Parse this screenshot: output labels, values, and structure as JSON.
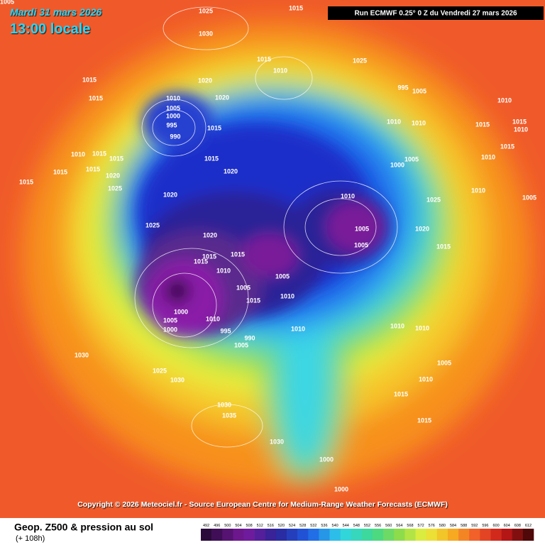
{
  "header": {
    "date": "Mardi 31 mars 2026",
    "time": "13:00 locale",
    "run": "Run ECMWF 0.25° 0 Z du Vendredi 27 mars 2026"
  },
  "copyright": "Copyright © 2026 Meteociel.fr - Source European Centre for Medium-Range Weather Forecasts (ECMWF)",
  "legend": {
    "title": "Geop. Z500 & pression au sol",
    "subtitle": "(+ 108h)",
    "scale": [
      492,
      496,
      500,
      504,
      508,
      512,
      516,
      520,
      524,
      528,
      532,
      536,
      540,
      544,
      548,
      552,
      556,
      560,
      564,
      568,
      572,
      576,
      580,
      584,
      588,
      592,
      596,
      600,
      604,
      608,
      612
    ]
  },
  "isobar_labels": [
    "1005",
    "1025",
    "1015",
    "1030",
    "1015",
    "1010",
    "1025",
    "1015",
    "1020",
    "1015",
    "1010",
    "1020",
    "995",
    "1005",
    "1010",
    "1005",
    "1000",
    "995",
    "990",
    "1015",
    "1010",
    "1010",
    "1015",
    "1015",
    "1010",
    "1010",
    "1015",
    "1015",
    "1015",
    "1015",
    "1015",
    "1015",
    "1020",
    "1020",
    "1000",
    "1005",
    "1010",
    "1015",
    "1025",
    "1020",
    "1010",
    "1025",
    "1010",
    "1005",
    "1025",
    "1020",
    "1020",
    "1005",
    "1005",
    "1015",
    "1015",
    "1015",
    "1010",
    "1015",
    "1005",
    "1000",
    "1005",
    "1000",
    "1010",
    "995",
    "990",
    "1005",
    "1010",
    "1015",
    "1010",
    "1005",
    "1030",
    "1025",
    "1030",
    "1030",
    "1035",
    "1030",
    "1000",
    "1000",
    "1015",
    "1010",
    "1010",
    "1005",
    "1010",
    "1015"
  ]
}
